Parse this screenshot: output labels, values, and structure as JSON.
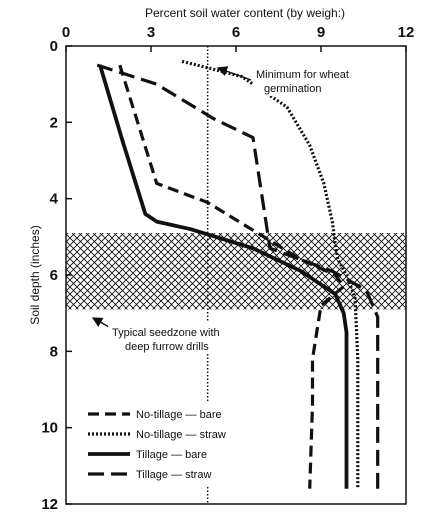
{
  "chart_data": {
    "type": "line",
    "title": "",
    "xlabel": "Percent soil water content (by weigh:)",
    "ylabel": "Soil depth (inches)",
    "x_axis_position": "top",
    "y_axis_inverted": true,
    "xlim": [
      0,
      12
    ],
    "ylim": [
      0,
      12
    ],
    "x_ticks": [
      "0",
      "3",
      "6",
      "9",
      "12"
    ],
    "y_ticks": [
      "0",
      "2",
      "4",
      "6",
      "8",
      "10",
      "12"
    ],
    "grid": false,
    "legend_position": "bottom-left",
    "series": [
      {
        "name": "No-tillage — bare",
        "style": "dashed",
        "points": [
          [
            1.9,
            0.5
          ],
          [
            3.2,
            3.6
          ],
          [
            5.0,
            4.1
          ],
          [
            8.3,
            5.6
          ],
          [
            9.5,
            6.0
          ],
          [
            9.8,
            6.3
          ],
          [
            9.0,
            6.8
          ],
          [
            8.7,
            8.2
          ],
          [
            8.7,
            9.4
          ],
          [
            8.6,
            11.6
          ]
        ]
      },
      {
        "name": "No-tillage — straw",
        "style": "dotted",
        "points": [
          [
            4.1,
            0.4
          ],
          [
            6.2,
            0.8
          ],
          [
            7.8,
            1.6
          ],
          [
            8.6,
            2.6
          ],
          [
            9.1,
            3.6
          ],
          [
            9.4,
            4.6
          ],
          [
            9.5,
            5.2
          ],
          [
            9.6,
            5.6
          ],
          [
            9.9,
            6.0
          ],
          [
            10.2,
            6.6
          ],
          [
            10.3,
            8.2
          ],
          [
            10.3,
            11.6
          ]
        ]
      },
      {
        "name": "Tillage — bare",
        "style": "solid",
        "points": [
          [
            1.2,
            0.5
          ],
          [
            2.0,
            2.5
          ],
          [
            2.8,
            4.4
          ],
          [
            3.2,
            4.6
          ],
          [
            4.4,
            4.8
          ],
          [
            6.6,
            5.3
          ],
          [
            8.3,
            5.9
          ],
          [
            9.5,
            6.5
          ],
          [
            9.8,
            7.0
          ],
          [
            9.9,
            7.5
          ],
          [
            9.9,
            11.6
          ]
        ]
      },
      {
        "name": "Tillage — straw",
        "style": "dashed-long",
        "points": [
          [
            1.1,
            0.5
          ],
          [
            3.2,
            1.0
          ],
          [
            5.2,
            1.9
          ],
          [
            6.6,
            2.4
          ],
          [
            7.2,
            5.3
          ],
          [
            9.4,
            5.9
          ],
          [
            10.6,
            6.4
          ],
          [
            11.0,
            7.1
          ],
          [
            11.0,
            8.4
          ],
          [
            11.0,
            11.6
          ]
        ]
      }
    ],
    "reference_line": {
      "x": 5.0,
      "style": "dotted"
    },
    "shaded_band": {
      "y_from": 4.9,
      "y_to": 6.9,
      "pattern": "crosshatch"
    },
    "annotations": {
      "minimum_germination": [
        "Minimum for wheat",
        "germination"
      ],
      "seedzone": [
        "Typical seedzone with",
        "deep furrow drills"
      ]
    }
  },
  "colors": {
    "ink": "#111111",
    "background": "#ffffff"
  }
}
